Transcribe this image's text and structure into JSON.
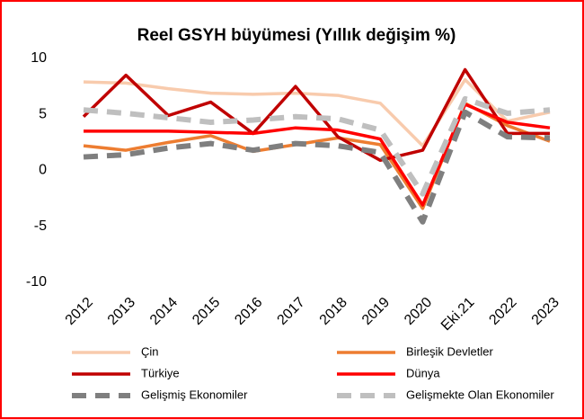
{
  "chart_data": {
    "type": "line",
    "title": "Reel GSYH büyümesi (Yıllık değişim %)",
    "categories": [
      "2012",
      "2013",
      "2014",
      "2015",
      "2016",
      "2017",
      "2018",
      "2019",
      "2020",
      "Eki.21",
      "2022",
      "2023"
    ],
    "series": [
      {
        "name": "Çin",
        "color": "#f8cbad",
        "values": [
          7.9,
          7.8,
          7.3,
          6.9,
          6.8,
          6.9,
          6.7,
          6.0,
          2.2,
          8.1,
          4.4,
          5.2
        ]
      },
      {
        "name": "Birleşik Devletler",
        "color": "#ed7d31",
        "values": [
          2.2,
          1.8,
          2.5,
          3.1,
          1.7,
          2.3,
          2.9,
          2.3,
          -3.4,
          6.0,
          4.0,
          2.6
        ]
      },
      {
        "name": "Türkiye",
        "color": "#c00000",
        "values": [
          4.8,
          8.5,
          4.9,
          6.1,
          3.3,
          7.5,
          3.0,
          0.9,
          1.8,
          9.0,
          3.3,
          3.3
        ]
      },
      {
        "name": "Dünya",
        "color": "#ff0000",
        "values": [
          3.5,
          3.5,
          3.5,
          3.4,
          3.3,
          3.8,
          3.6,
          2.8,
          -3.1,
          5.9,
          4.3,
          3.8
        ]
      },
      {
        "name": "Gelişmiş Ekonomiler",
        "color": "#7f7f7f",
        "dashed": true,
        "values": [
          1.2,
          1.4,
          2.0,
          2.4,
          1.8,
          2.4,
          2.2,
          1.6,
          -4.6,
          5.2,
          3.0,
          2.9
        ]
      },
      {
        "name": "Gelişmekte Olan Ekonomiler",
        "color": "#bfbfbf",
        "dashed": true,
        "values": [
          5.4,
          5.1,
          4.7,
          4.3,
          4.5,
          4.8,
          4.6,
          3.6,
          -2.1,
          6.4,
          5.1,
          5.4
        ]
      }
    ],
    "ylim": [
      -10,
      10
    ],
    "yticks": [
      -10,
      -5,
      0,
      5,
      10
    ],
    "grid": false
  }
}
